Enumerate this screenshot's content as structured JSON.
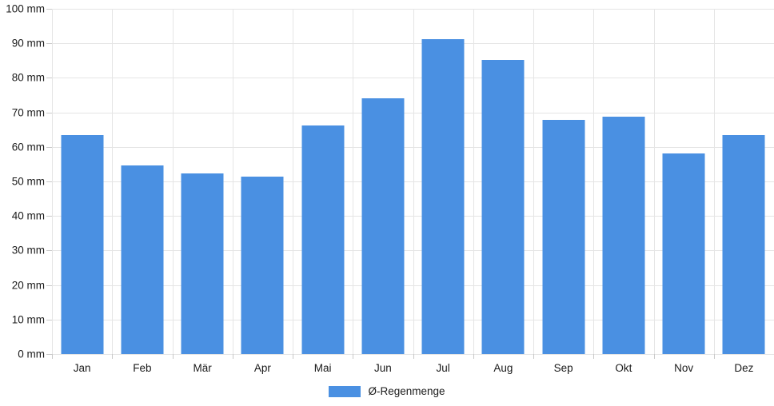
{
  "chart_data": {
    "type": "bar",
    "title": "",
    "xlabel": "",
    "ylabel": "",
    "categories": [
      "Jan",
      "Feb",
      "Mär",
      "Apr",
      "Mai",
      "Jun",
      "Jul",
      "Aug",
      "Sep",
      "Okt",
      "Nov",
      "Dez"
    ],
    "values": [
      63.5,
      54.7,
      52.4,
      51.4,
      66.2,
      74.1,
      91.2,
      85.2,
      67.8,
      68.7,
      58.1,
      63.4
    ],
    "ylim": [
      0,
      100
    ],
    "y_step": 10,
    "y_tick_suffix": " mm",
    "grid": true,
    "legend": {
      "label": "Ø-Regenmenge",
      "position": "bottom"
    }
  },
  "colors": {
    "bar": "#4a90e2",
    "grid": "#e5e5e5",
    "tick": "#c9c9c9",
    "text": "#1a1a1a",
    "background": "#ffffff"
  }
}
